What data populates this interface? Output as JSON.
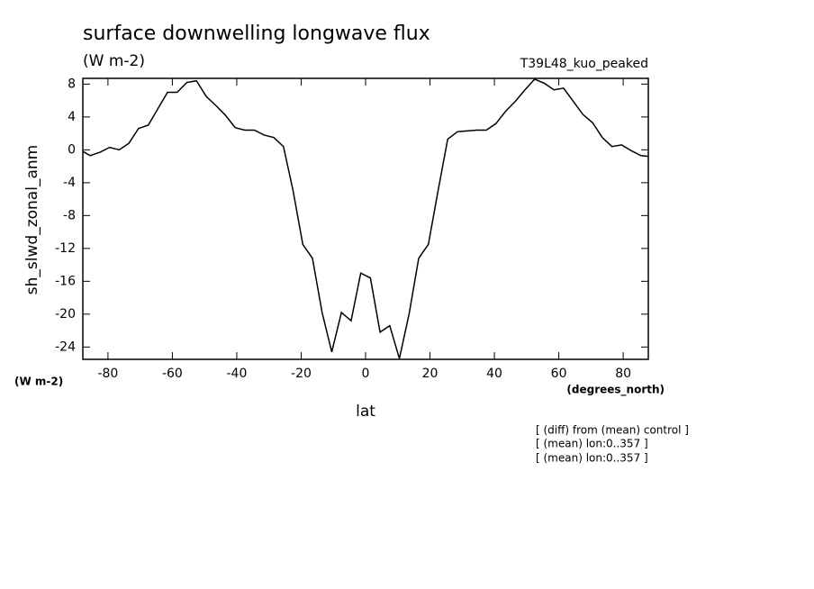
{
  "chart_data": {
    "type": "line",
    "title": "surface downwelling longwave flux",
    "units": "(W m-2)",
    "dataset": "T39L48_kuo_peaked",
    "y_label": "sh_slwd_zonal_anm",
    "y_units": "(W m-2)",
    "x_units": "(degrees_north)",
    "x_label": "lat",
    "notes": [
      "[ (diff) from (mean) control ]",
      "[ (mean) lon:0..357 ]",
      "[ (mean) lon:0..357 ]"
    ],
    "x": [
      -87.8,
      -85.5,
      -82.5,
      -79.5,
      -76.5,
      -73.5,
      -70.5,
      -67.5,
      -64.5,
      -61.5,
      -58.5,
      -55.5,
      -52.5,
      -49.5,
      -46.5,
      -43.5,
      -40.5,
      -37.5,
      -34.5,
      -31.5,
      -28.5,
      -25.5,
      -22.5,
      -19.5,
      -16.5,
      -13.5,
      -10.5,
      -7.5,
      -4.5,
      -1.5,
      1.5,
      4.5,
      7.5,
      10.5,
      13.5,
      16.5,
      19.5,
      22.5,
      25.5,
      28.5,
      31.5,
      34.5,
      37.5,
      40.5,
      43.5,
      46.5,
      49.5,
      52.5,
      55.5,
      58.5,
      61.5,
      64.5,
      67.5,
      70.5,
      73.5,
      76.5,
      79.5,
      82.5,
      85.5,
      87.8
    ],
    "series": [
      {
        "color": "#000000",
        "values": [
          -0.2,
          -0.7,
          -0.3,
          0.3,
          0,
          0.8,
          2.6,
          3,
          5,
          7,
          7,
          8.2,
          8.4,
          6.5,
          5.4,
          4.2,
          2.7,
          2.4,
          2.4,
          1.8,
          1.5,
          0.4,
          -5,
          -11.5,
          -13.2,
          -19.8,
          -24.6,
          -19.8,
          -20.8,
          -15,
          -15.6,
          -22.2,
          -21.4,
          -25.4,
          -20,
          -13.2,
          -11.5,
          -5,
          1.3,
          2.2,
          2.3,
          2.4,
          2.4,
          3.2,
          4.7,
          5.9,
          7.3,
          8.6,
          8.1,
          7.3,
          7.5,
          5.9,
          4.3,
          3.3,
          1.5,
          0.4,
          0.6,
          -0.1,
          -0.7,
          -0.8
        ]
      }
    ],
    "xlim": [
      -87.8,
      87.8
    ],
    "xticks": [
      -80,
      -60,
      -40,
      -20,
      0,
      20,
      40,
      60,
      80
    ],
    "ylim": [
      -25.5,
      8.7
    ],
    "yticks": [
      -24,
      -20,
      -16,
      -12,
      -8,
      -4,
      0,
      4,
      8
    ]
  }
}
